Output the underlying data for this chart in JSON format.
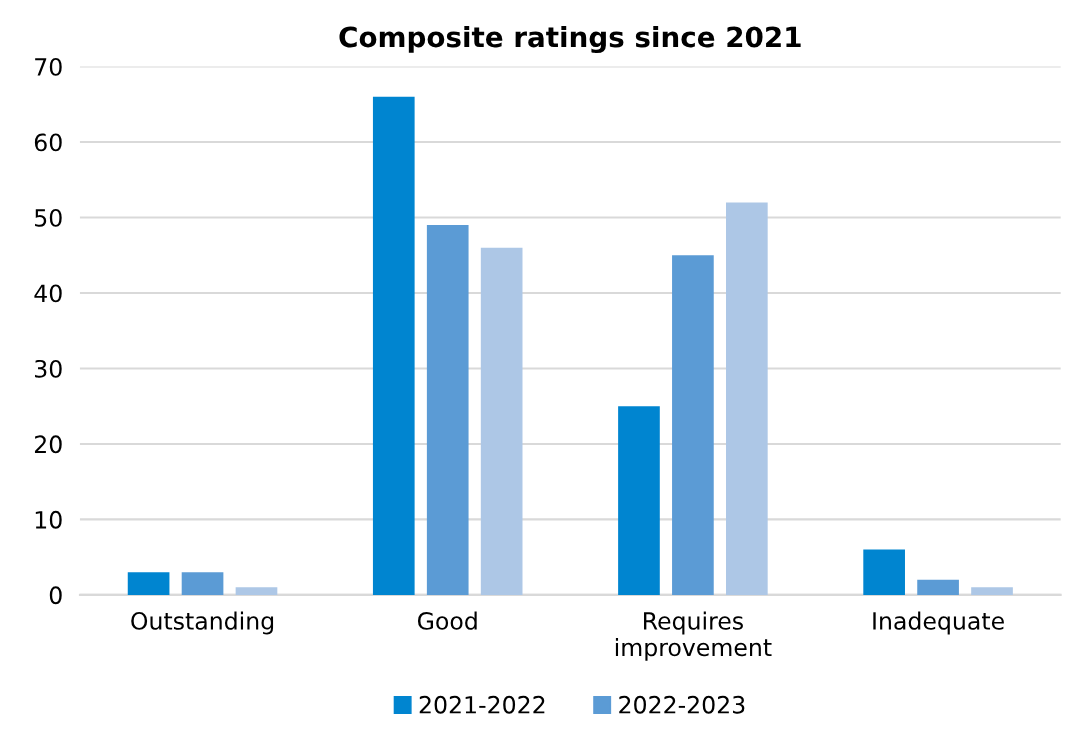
{
  "chart_data": {
    "type": "bar",
    "title": "Composite ratings since 2021",
    "categories": [
      "Outstanding",
      "Good",
      "Requires\nimprovement",
      "Inadequate"
    ],
    "series": [
      {
        "name": "2021-2022",
        "color": "#0085d0",
        "values": [
          3,
          66,
          25,
          6
        ]
      },
      {
        "name": "2022-2023",
        "color": "#5b9bd5",
        "values": [
          3,
          49,
          45,
          2
        ]
      },
      {
        "color": "#adc7e6",
        "values": [
          1,
          46,
          52,
          1
        ]
      }
    ],
    "ylim": [
      0,
      70
    ],
    "yticks": [
      0,
      10,
      20,
      30,
      40,
      50,
      60,
      70
    ],
    "grid": "y",
    "legend": "bottom"
  }
}
